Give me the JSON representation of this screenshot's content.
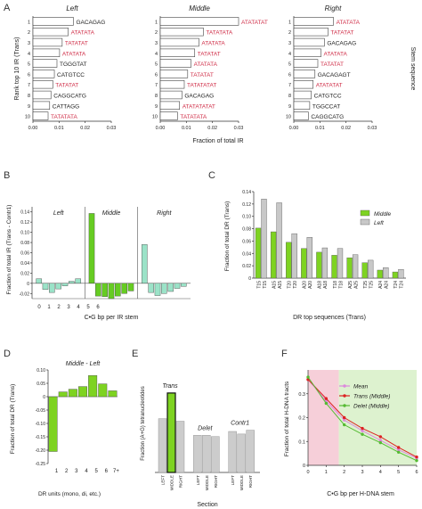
{
  "panel_letters": [
    "A",
    "B",
    "C",
    "D",
    "E",
    "F"
  ],
  "chart_data": [
    {
      "panel": "A",
      "type": "bar",
      "orientation": "horizontal",
      "ylabel": "Rank top 10 IR (Trans)",
      "xlabel": "Fraction of total IR",
      "right_label": "Stem sequence",
      "ranks": [
        "1",
        "2",
        "3",
        "4",
        "5",
        "6",
        "7",
        "8",
        "9",
        "10"
      ],
      "xlim": [
        0,
        0.03
      ],
      "xticks": [
        "0.00",
        "0.01",
        "0.02",
        "0.03"
      ],
      "highlight_color": "#d0304a",
      "subpanels": [
        {
          "title": "Left",
          "values": [
            0.0155,
            0.0135,
            0.0112,
            0.0102,
            0.0092,
            0.0082,
            0.0076,
            0.0069,
            0.0064,
            0.0058
          ],
          "labels": [
            "GACAGAG",
            "ATATATA",
            "TATATAT",
            "ATATATA",
            "TGGGTAT",
            "CATGTCC",
            "TATATAT",
            "CAGGCATG",
            "CATTAGG",
            "TATATATA"
          ],
          "highlight": [
            false,
            true,
            true,
            true,
            false,
            false,
            true,
            false,
            false,
            true
          ]
        },
        {
          "title": "Middle",
          "values": [
            0.03,
            0.0165,
            0.0148,
            0.0132,
            0.0118,
            0.0105,
            0.0092,
            0.0083,
            0.0074,
            0.0066
          ],
          "labels": [
            "ATATATAT",
            "TATATATA",
            "ATATATA",
            "TATATAT",
            "ATATATA",
            "TATATAT",
            "TATATATAT",
            "GACAGAG",
            "ATATATATAT",
            "TATATATA"
          ],
          "highlight": [
            true,
            true,
            true,
            true,
            true,
            true,
            true,
            false,
            true,
            true
          ]
        },
        {
          "title": "Right",
          "values": [
            0.0152,
            0.0131,
            0.0117,
            0.0104,
            0.0092,
            0.0081,
            0.0074,
            0.0067,
            0.0061,
            0.0056
          ],
          "labels": [
            "ATATATA",
            "TATATAT",
            "GACAGAG",
            "ATATATA",
            "TATATAT",
            "GACAGAGT",
            "ATATATAT",
            "CATGTCC",
            "TGGCCAT",
            "CAGGCATG"
          ],
          "highlight": [
            true,
            true,
            false,
            true,
            true,
            false,
            true,
            false,
            false,
            false
          ]
        }
      ]
    },
    {
      "panel": "B",
      "type": "bar",
      "ylabel": "Fraction of total IR (Trans - Contr1)",
      "xlabel": "C•G bp per IR stem",
      "ylim": [
        -0.03,
        0.15
      ],
      "yticks": [
        "-0.02",
        "0",
        "0.02",
        "0.04",
        "0.06",
        "0.08",
        "0.10",
        "0.12",
        "0.14"
      ],
      "categories": [
        "0",
        "1",
        "2",
        "3",
        "4",
        "5",
        "6"
      ],
      "groups": [
        {
          "title": "Left",
          "values": [
            0.009,
            -0.012,
            -0.018,
            -0.011,
            -0.005,
            0.004,
            0.009
          ],
          "color": "#9be3c8"
        },
        {
          "title": "Middle",
          "values": [
            0.137,
            -0.025,
            -0.026,
            -0.03,
            -0.025,
            -0.02,
            -0.015
          ],
          "color": "#66cc22"
        },
        {
          "title": "Right",
          "values": [
            0.076,
            -0.018,
            -0.024,
            -0.02,
            -0.016,
            -0.01,
            -0.006
          ],
          "color": "#9be3c8"
        }
      ]
    },
    {
      "panel": "C",
      "type": "bar",
      "ylabel": "Fraction of total DR (Trans)",
      "xlabel": "DR top sequences (Trans)",
      "ylim": [
        0,
        0.14
      ],
      "yticks": [
        "0",
        "0.02",
        "0.04",
        "0.06",
        "0.08",
        "0.10",
        "0.12",
        "0.14"
      ],
      "categories": [
        "T15",
        "A15",
        "T20",
        "A20",
        "A18",
        "T18",
        "A25",
        "T25",
        "A24",
        "T24"
      ],
      "category_labels": [
        [
          "T15",
          "T15"
        ],
        [
          "A15",
          "A15"
        ],
        [
          "T20",
          "T20"
        ],
        [
          "A20",
          "A20"
        ],
        [
          "A18",
          "A18"
        ],
        [
          "T18",
          "T18"
        ],
        [
          "A25",
          "A25"
        ],
        [
          "T25",
          "T25"
        ],
        [
          "A24",
          "A24"
        ],
        [
          "T24",
          "T24"
        ]
      ],
      "series": [
        {
          "name": "Middle",
          "color": "#7ed321",
          "values": [
            0.081,
            0.075,
            0.058,
            0.048,
            0.042,
            0.037,
            0.033,
            0.025,
            0.013,
            0.01
          ]
        },
        {
          "name": "Left",
          "color": "#c8c8c8",
          "values": [
            0.128,
            0.122,
            0.072,
            0.066,
            0.049,
            0.048,
            0.038,
            0.029,
            0.017,
            0.014
          ]
        }
      ],
      "legend": "top-right"
    },
    {
      "panel": "D",
      "type": "bar",
      "title": "Middle - Left",
      "ylabel": "Fraction of total DR (Trans)",
      "xlabel": "DR units (mono, di, etc.)",
      "ylim": [
        -0.25,
        0.1
      ],
      "yticks": [
        "-0.25",
        "-0.20",
        "-0.15",
        "-0.10",
        "-0.05",
        "0",
        "0.05",
        "0.10"
      ],
      "categories": [
        "1",
        "2",
        "3",
        "4",
        "5",
        "6",
        "7+"
      ],
      "values": [
        -0.205,
        0.018,
        0.028,
        0.038,
        0.079,
        0.048,
        0.022
      ],
      "color": "#7ed321"
    },
    {
      "panel": "E",
      "type": "bar",
      "ylabel": "Fraction (A+G) tetranucleotides",
      "xlabel": "Section",
      "ylim": [
        0,
        0.8
      ],
      "groups": [
        {
          "title": "Trans",
          "categories": [
            "LEFT",
            "MIDDLE",
            "RIGHT"
          ],
          "values": [
            0.42,
            0.62,
            0.4
          ],
          "colors": [
            "#cccccc",
            "#7ed321",
            "#cccccc"
          ]
        },
        {
          "title": "Delet",
          "categories": [
            "LEFT",
            "MIDDLE",
            "RIGHT"
          ],
          "values": [
            0.29,
            0.29,
            0.28
          ],
          "colors": [
            "#cccccc",
            "#cccccc",
            "#cccccc"
          ]
        },
        {
          "title": "Contr1",
          "categories": [
            "LEFT",
            "MIDDLE",
            "RIGHT"
          ],
          "values": [
            0.32,
            0.3,
            0.33
          ],
          "colors": [
            "#cccccc",
            "#cccccc",
            "#cccccc"
          ]
        }
      ]
    },
    {
      "panel": "F",
      "type": "line",
      "ylabel": "Fraction of total H-DNA tracts",
      "xlabel": "C•G bp per H-DNA stem",
      "ylim": [
        0,
        0.4
      ],
      "yticks": [
        "0",
        "0.1",
        "0.2",
        "0.3"
      ],
      "xlim": [
        0,
        6
      ],
      "xticks": [
        "0",
        "1",
        "2",
        "3",
        "4",
        "5",
        "6"
      ],
      "x": [
        0,
        1,
        2,
        3,
        4,
        5,
        6
      ],
      "series": [
        {
          "name": "Mean",
          "color": "#dd88dd",
          "values": [
            0.36,
            0.27,
            0.19,
            0.145,
            0.105,
            0.065,
            0.03
          ]
        },
        {
          "name": "Trans (Middle)",
          "color": "#dd2222",
          "values": [
            0.36,
            0.28,
            0.2,
            0.155,
            0.12,
            0.075,
            0.035
          ]
        },
        {
          "name": "Delet (Middle)",
          "color": "#55bb33",
          "values": [
            0.37,
            0.26,
            0.17,
            0.13,
            0.095,
            0.055,
            0.02
          ]
        }
      ],
      "shaded_regions": [
        {
          "from": 0,
          "to": 1.7,
          "color": "#f6cfd9"
        },
        {
          "from": 1.7,
          "to": 6,
          "color": "#ddf2cf"
        }
      ],
      "legend": "top-right"
    }
  ]
}
